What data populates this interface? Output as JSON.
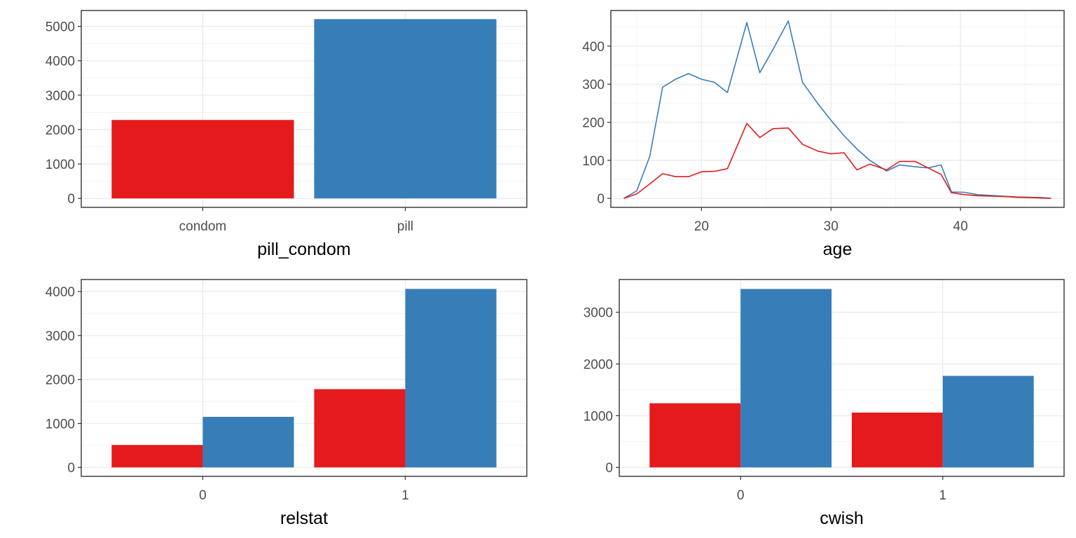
{
  "colors": {
    "condom": "#E41A1C",
    "pill": "#377EB8"
  },
  "chart_data": [
    {
      "id": "pill_condom",
      "type": "bar",
      "xlabel": "pill_condom",
      "ylabel": "",
      "categories": [
        "condom",
        "pill"
      ],
      "ylim": [
        0,
        5200
      ],
      "yticks": [
        0,
        1000,
        2000,
        3000,
        4000,
        5000
      ],
      "series": [
        {
          "group": "condom",
          "values": [
            2280,
            null
          ]
        },
        {
          "group": "pill",
          "values": [
            null,
            5210
          ]
        }
      ],
      "grid": true
    },
    {
      "id": "age",
      "type": "line",
      "xlabel": "age",
      "ylabel": "",
      "xlim": [
        13,
        48
      ],
      "ylim": [
        0,
        470
      ],
      "xticks": [
        20,
        30,
        40
      ],
      "yticks": [
        0,
        100,
        200,
        300,
        400
      ],
      "series": [
        {
          "group": "pill",
          "x": [
            14,
            15,
            16,
            17,
            18,
            19,
            20,
            21,
            22,
            23.5,
            24.5,
            25.5,
            26.7,
            27.8,
            29,
            30,
            31,
            32,
            33,
            34.3,
            35.3,
            36.5,
            37.5,
            38.5,
            39.3,
            40.3,
            41.3,
            42.3,
            43.3,
            44.3,
            45.3,
            46.3,
            47
          ],
          "y": [
            0,
            20,
            110,
            292,
            313,
            328,
            313,
            305,
            278,
            462,
            330,
            390,
            466,
            305,
            248,
            205,
            165,
            130,
            100,
            72,
            88,
            83,
            80,
            88,
            17,
            16,
            10,
            8,
            6,
            4,
            3,
            2,
            0
          ]
        },
        {
          "group": "condom",
          "x": [
            14,
            15,
            16,
            17,
            18,
            19,
            20,
            21,
            22,
            23.5,
            24.5,
            25.5,
            26.7,
            27.8,
            29,
            30,
            31,
            32,
            33,
            34.3,
            35.3,
            36.5,
            37.5,
            38.5,
            39.3,
            40.3,
            41.3,
            42.3,
            43.3,
            44.3,
            45.3,
            46.3,
            47
          ],
          "y": [
            0,
            12,
            38,
            65,
            57,
            57,
            70,
            71,
            78,
            197,
            160,
            183,
            185,
            142,
            124,
            117,
            120,
            75,
            90,
            75,
            97,
            97,
            80,
            63,
            15,
            10,
            7,
            6,
            5,
            3,
            2,
            1,
            0
          ]
        }
      ],
      "grid": true
    },
    {
      "id": "relstat",
      "type": "bar",
      "xlabel": "relstat",
      "ylabel": "",
      "categories": [
        "0",
        "1"
      ],
      "ylim": [
        0,
        4070
      ],
      "yticks": [
        0,
        1000,
        2000,
        3000,
        4000
      ],
      "series": [
        {
          "group": "condom",
          "values": [
            510,
            1780
          ]
        },
        {
          "group": "pill",
          "values": [
            1150,
            4060
          ]
        }
      ],
      "grid": true
    },
    {
      "id": "cwish",
      "type": "bar",
      "xlabel": "cwish",
      "ylabel": "",
      "categories": [
        "0",
        "1"
      ],
      "ylim": [
        0,
        3460
      ],
      "yticks": [
        0,
        1000,
        2000,
        3000
      ],
      "series": [
        {
          "group": "condom",
          "values": [
            1240,
            1060
          ]
        },
        {
          "group": "pill",
          "values": [
            3450,
            1770
          ]
        }
      ],
      "grid": true
    }
  ]
}
